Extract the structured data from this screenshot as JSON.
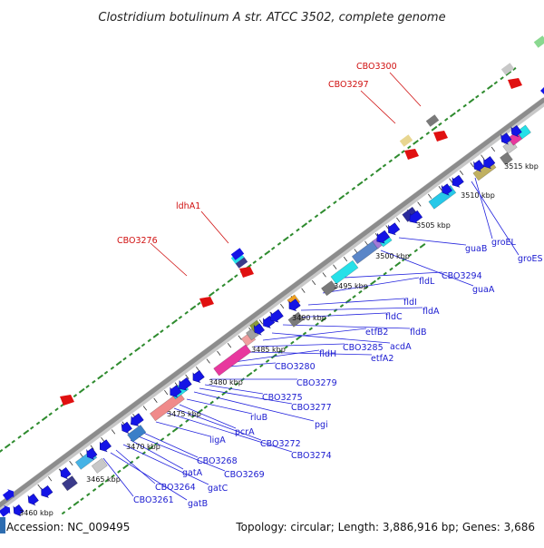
{
  "title": "Clostridium botulinum A str. ATCC 3502, complete genome",
  "footer": {
    "accession": "Accession: NC_009495",
    "summary": "Topology: circular; Length: 3,886,916 bp; Genes: 3,686"
  },
  "kbp_labels": [
    "3460 kbp",
    "3465 kbp",
    "3470 kbp",
    "3475 kbp",
    "3480 kbp",
    "3485 kbp",
    "3490 kbp",
    "3495 kbp",
    "3500 kbp",
    "3505 kbp",
    "3510 kbp",
    "3515 kbp"
  ],
  "gene_labels": [
    "CBO3261",
    "gatB",
    "CBO3264",
    "gatC",
    "gatA",
    "CBO3269",
    "CBO3268",
    "ligA",
    "CBO3274",
    "CBO3272",
    "pcrA",
    "rluB",
    "pgi",
    "CBO3277",
    "CBO3275",
    "CBO3279",
    "CBO3280",
    "fldH",
    "etfA2",
    "CBO3285",
    "etfB2",
    "acdA",
    "fldB",
    "fldC",
    "fldA",
    "fldI",
    "fldL",
    "CBO3294",
    "guaA",
    "guaB",
    "groES",
    "groEL"
  ],
  "rna_labels": [
    "CBO3276",
    "ldhA1",
    "CBO3297",
    "CBO3300"
  ],
  "colors": {
    "backbone": "#8c8c8c",
    "gene_arrow": "#1414e6",
    "rna": "#e01010",
    "gc_dots": "#2e8b2e",
    "label_line_blue": "#2222dd",
    "label_line_red": "#d01010"
  }
}
